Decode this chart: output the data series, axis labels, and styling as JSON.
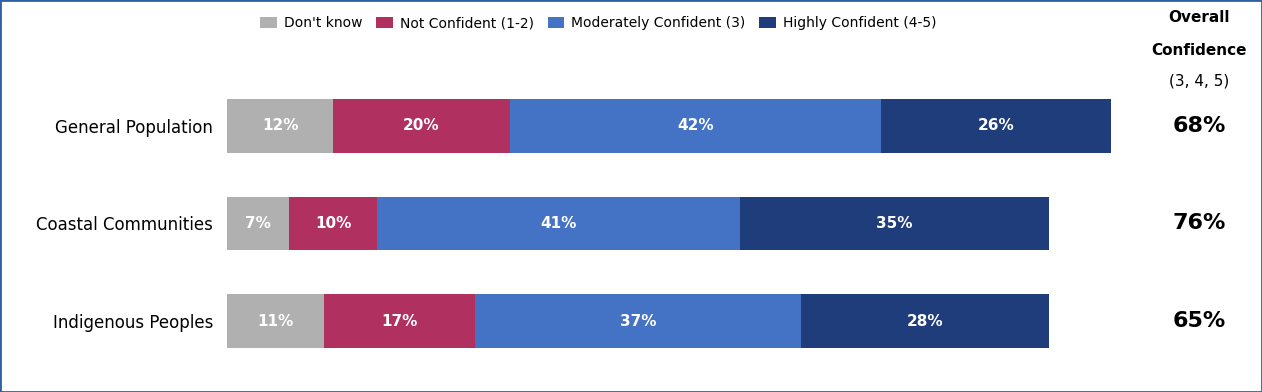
{
  "categories": [
    "General Population",
    "Coastal Communities",
    "Indigenous Peoples"
  ],
  "segments": {
    "Don't know": [
      12,
      7,
      11
    ],
    "Not Confident (1-2)": [
      20,
      10,
      17
    ],
    "Moderately Confident (3)": [
      42,
      41,
      37
    ],
    "Highly Confident (4-5)": [
      26,
      35,
      28
    ]
  },
  "overall_confidence": [
    "68%",
    "76%",
    "65%"
  ],
  "colors": {
    "Don't know": "#b0b0b0",
    "Not Confident (1-2)": "#b03060",
    "Moderately Confident (3)": "#4472c4",
    "Highly Confident (4-5)": "#1f3d7a"
  },
  "legend_labels": [
    "Don't know",
    "Not Confident (1-2)",
    "Moderately Confident (3)",
    "Highly Confident (4-5)"
  ],
  "overall_label_line1": "Overall",
  "overall_label_line2": "Confidence",
  "overall_label_line3": "(3, 4, 5)",
  "bar_height": 0.55,
  "figsize": [
    12.62,
    3.92
  ],
  "dpi": 100,
  "background_color": "#ffffff",
  "border_color": "#3060a0",
  "label_fontsize": 12,
  "bar_label_fontsize": 11,
  "legend_fontsize": 10,
  "overall_val_fontsize": 16,
  "overall_header_fontsize": 11
}
